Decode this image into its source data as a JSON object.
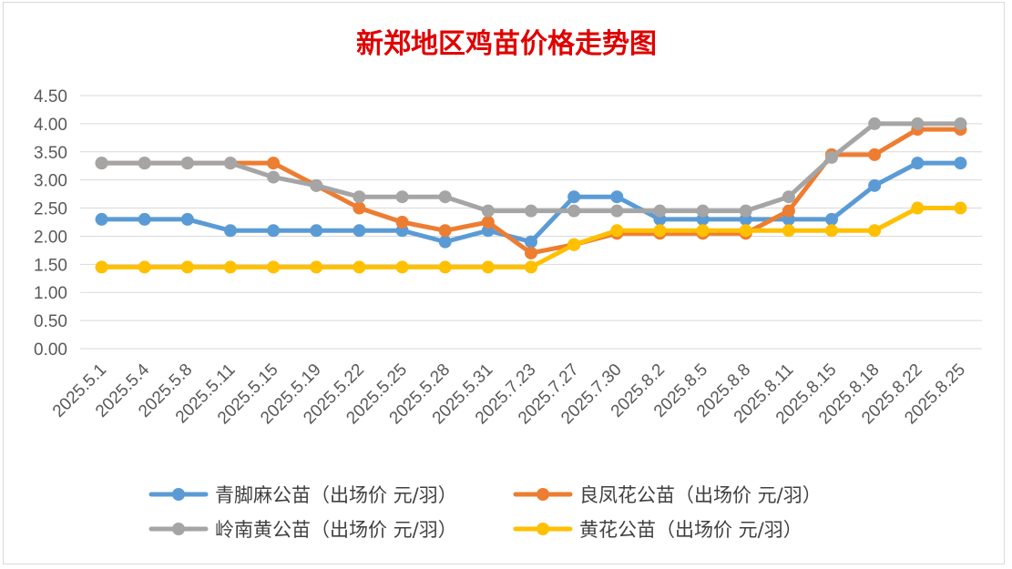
{
  "chart_data": {
    "type": "line",
    "title": "新郑地区鸡苗价格走势图",
    "xlabel": "",
    "ylabel": "",
    "ylim": [
      0,
      4.5
    ],
    "yticks": [
      "0.00",
      "0.50",
      "1.00",
      "1.50",
      "2.00",
      "2.50",
      "3.00",
      "3.50",
      "4.00",
      "4.50"
    ],
    "grid": true,
    "legend_position": "bottom",
    "categories": [
      "2025.5.1",
      "2025.5.4",
      "2025.5.8",
      "2025.5.11",
      "2025.5.15",
      "2025.5.19",
      "2025.5.22",
      "2025.5.25",
      "2025.5.28",
      "2025.5.31",
      "2025.7.23",
      "2025.7.27",
      "2025.7.30",
      "2025.8.2",
      "2025.8.5",
      "2025.8.8",
      "2025.8.11",
      "2025.8.15",
      "2025.8.18",
      "2025.8.22",
      "2025.8.25"
    ],
    "series": [
      {
        "name": "青脚麻公苗（出场价 元/羽）",
        "color": "#5b9bd5",
        "values": [
          2.3,
          2.3,
          2.3,
          2.1,
          2.1,
          2.1,
          2.1,
          2.1,
          1.9,
          2.1,
          1.9,
          2.7,
          2.7,
          2.3,
          2.3,
          2.3,
          2.3,
          2.3,
          2.9,
          3.3,
          3.3
        ]
      },
      {
        "name": "良凤花公苗（出场价 元/羽）",
        "color": "#ed7d31",
        "values": [
          3.3,
          3.3,
          3.3,
          3.3,
          3.3,
          2.9,
          2.5,
          2.25,
          2.1,
          2.25,
          1.7,
          1.85,
          2.05,
          2.05,
          2.05,
          2.05,
          2.45,
          3.45,
          3.45,
          3.9,
          3.9
        ]
      },
      {
        "name": "岭南黄公苗（出场价 元/羽）",
        "color": "#a5a5a5",
        "values": [
          3.3,
          3.3,
          3.3,
          3.3,
          3.05,
          2.9,
          2.7,
          2.7,
          2.7,
          2.45,
          2.45,
          2.45,
          2.45,
          2.45,
          2.45,
          2.45,
          2.7,
          3.4,
          4.0,
          4.0,
          4.0
        ]
      },
      {
        "name": "黄花公苗（出场价 元/羽）",
        "color": "#ffc000",
        "values": [
          1.45,
          1.45,
          1.45,
          1.45,
          1.45,
          1.45,
          1.45,
          1.45,
          1.45,
          1.45,
          1.45,
          1.85,
          2.1,
          2.1,
          2.1,
          2.1,
          2.1,
          2.1,
          2.1,
          2.5,
          2.5
        ]
      }
    ]
  }
}
